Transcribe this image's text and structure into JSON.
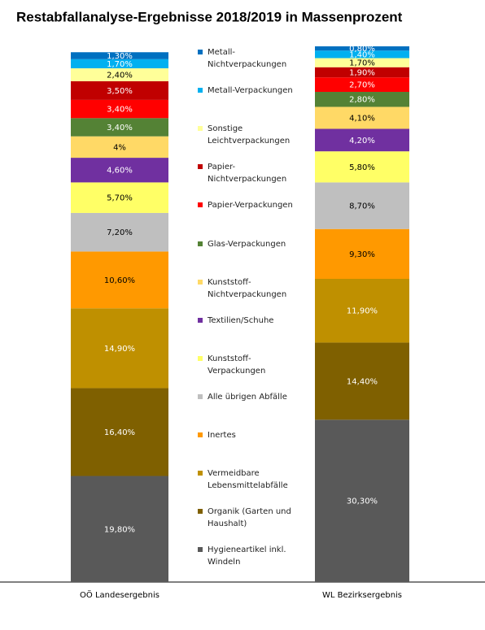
{
  "chart_data": {
    "type": "stacked_bar",
    "title": "Restabfallanalyse-Ergebnisse  2018/2019 in Massenprozent",
    "categories": [
      "OÖ Landesergebnis",
      "WL Bezirksergebnis"
    ],
    "series": [
      {
        "name": "Metall-Nichtverpackungen",
        "color": "#0070c0",
        "values": [
          1.3,
          0.8
        ],
        "value_labels": [
          "1,30%",
          "0,80%"
        ]
      },
      {
        "name": "Metall-Verpackungen",
        "color": "#00b0f0",
        "values": [
          1.7,
          1.4
        ],
        "value_labels": [
          "1,70%",
          "1,40%"
        ]
      },
      {
        "name": "Sonstige Leichtverpackungen",
        "color": "#ffff99",
        "values": [
          2.4,
          1.7
        ],
        "value_labels": [
          "2,40%",
          "1,70%"
        ]
      },
      {
        "name": "Papier-Nichtverpackungen",
        "color": "#c00000",
        "values": [
          3.5,
          1.9
        ],
        "value_labels": [
          "3,50%",
          "1,90%"
        ]
      },
      {
        "name": "Papier-Verpackungen",
        "color": "#ff0000",
        "values": [
          3.4,
          2.7
        ],
        "value_labels": [
          "3,40%",
          "2,70%"
        ]
      },
      {
        "name": "Glas-Verpackungen",
        "color": "#548235",
        "values": [
          3.4,
          2.8
        ],
        "value_labels": [
          "3,40%",
          "2,80%"
        ]
      },
      {
        "name": "Kunststoff-Nichtverpackungen",
        "color": "#ffd966",
        "values": [
          4,
          4.1
        ],
        "value_labels": [
          "4%",
          "4,10%"
        ]
      },
      {
        "name": "Textilien/Schuhe",
        "color": "#7030a0",
        "values": [
          4.6,
          4.2
        ],
        "value_labels": [
          "4,60%",
          "4,20%"
        ]
      },
      {
        "name": "Kunststoff-Verpackungen",
        "color": "#ffff66",
        "values": [
          5.7,
          5.8
        ],
        "value_labels": [
          "5,70%",
          "5,80%"
        ]
      },
      {
        "name": "Alle übrigen Abfälle",
        "color": "#bfbfbf",
        "values": [
          7.2,
          8.7
        ],
        "value_labels": [
          "7,20%",
          "8,70%"
        ]
      },
      {
        "name": "Inertes",
        "color": "#ff9900",
        "values": [
          10.6,
          9.3
        ],
        "value_labels": [
          "10,60%",
          "9,30%"
        ]
      },
      {
        "name": "Vermeidbare Lebensmittelabfälle",
        "color": "#bf9000",
        "values": [
          14.9,
          11.9
        ],
        "value_labels": [
          "14,90%",
          "11,90%"
        ]
      },
      {
        "name": "Organik (Garten und Haushalt)",
        "color": "#7f6000",
        "values": [
          16.4,
          14.4
        ],
        "value_labels": [
          "16,40%",
          "14,40%"
        ]
      },
      {
        "name": "Hygieneartikel inkl. Windeln",
        "color": "#595959",
        "values": [
          19.8,
          30.3
        ],
        "value_labels": [
          "19,80%",
          "30,30%"
        ]
      }
    ]
  }
}
